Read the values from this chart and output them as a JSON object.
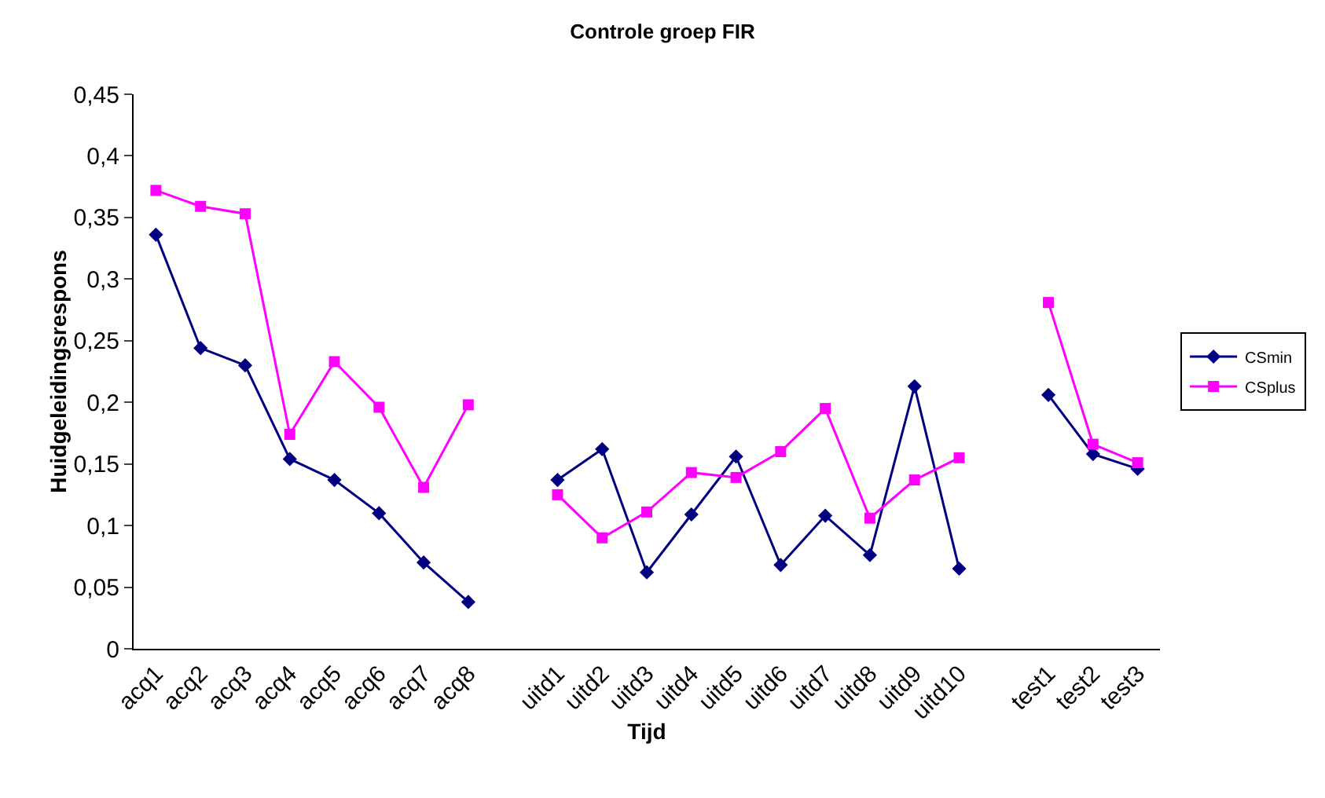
{
  "chart_data": {
    "type": "line",
    "title": "Controle groep FIR",
    "xlabel": "Tijd",
    "ylabel": "Huidgeleidingsrespons",
    "categories": [
      "acq1",
      "acq2",
      "acq3",
      "acq4",
      "acq5",
      "acq6",
      "acq7",
      "acq8",
      null,
      "uitd1",
      "uitd2",
      "uitd3",
      "uitd4",
      "uitd5",
      "uitd6",
      "uitd7",
      "uitd8",
      "uitd9",
      "uitd10",
      null,
      "test1",
      "test2",
      "test3"
    ],
    "series": [
      {
        "name": "CSmin",
        "color": "#000080",
        "marker": "diamond",
        "values": [
          0.336,
          0.244,
          0.23,
          0.154,
          0.137,
          0.11,
          0.07,
          0.038,
          null,
          0.137,
          0.162,
          0.062,
          0.109,
          0.156,
          0.068,
          0.108,
          0.076,
          0.213,
          0.065,
          null,
          0.206,
          0.158,
          0.146
        ]
      },
      {
        "name": "CSplus",
        "color": "#ff00ff",
        "marker": "square",
        "values": [
          0.372,
          0.359,
          0.353,
          0.174,
          0.233,
          0.196,
          0.131,
          0.198,
          null,
          0.125,
          0.09,
          0.111,
          0.143,
          0.139,
          0.16,
          0.195,
          0.106,
          0.137,
          0.155,
          null,
          0.281,
          0.166,
          0.151
        ]
      }
    ],
    "ylim": [
      0,
      0.45
    ],
    "yticks": [
      0,
      {
        "value": 0.05,
        "label": "0,05"
      },
      {
        "value": 0.1,
        "label": "0,1"
      },
      {
        "value": 0.15,
        "label": "0,15"
      },
      {
        "value": 0.2,
        "label": "0,2"
      },
      {
        "value": 0.25,
        "label": "0,25"
      },
      {
        "value": 0.3,
        "label": "0,3"
      },
      {
        "value": 0.35,
        "label": "0,35"
      },
      {
        "value": 0.4,
        "label": "0,4"
      },
      {
        "value": 0.45,
        "label": "0,45"
      }
    ],
    "grid": false,
    "legend": "right",
    "line_style": "solid"
  }
}
